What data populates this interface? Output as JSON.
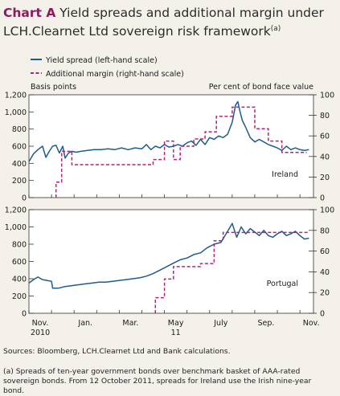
{
  "header": {
    "label": "Chart A",
    "title_line1": "Yield spreads and additional margin under",
    "title_line2": "LCH.Clearnet Ltd sovereign risk framework",
    "footnote_marker": "(a)"
  },
  "sources": "Sources:  Bloomberg, LCH.Clearnet Ltd and Bank calculations.",
  "footnote": "(a)  Spreads of ten-year government bonds over benchmark basket of AAA-rated sovereign bonds.  From 12 October 2011, spreads for Ireland use the Irish nine-year bond.",
  "colors": {
    "spread": "#1f5b8e",
    "margin": "#b3237d",
    "accent": "#8a1c5e"
  },
  "chart_data": {
    "type": "line",
    "legend": {
      "placement": "top-left",
      "entries": [
        "Yield spread (left-hand scale)",
        "Additional margin (right-hand scale)"
      ]
    },
    "left_axis_label": "Basis points",
    "right_axis_label": "Per cent of bond face value",
    "x_ticks": [
      "Nov.",
      "Jan.",
      "Mar.",
      "May",
      "July",
      "Sep.",
      "Nov."
    ],
    "x_ticks_second_row": [
      "2010",
      "",
      "",
      "11",
      "",
      "",
      ""
    ],
    "x_range_months": [
      0,
      12.6
    ],
    "left_ticks": [
      "1,200",
      "1,000",
      "800",
      "600",
      "400",
      "200",
      "0"
    ],
    "right_ticks": [
      "100",
      "80",
      "60",
      "40",
      "20",
      "0"
    ],
    "left_range": [
      0,
      1200
    ],
    "right_range": [
      0,
      100
    ],
    "panels": [
      {
        "name": "Ireland",
        "spread": [
          [
            0,
            420
          ],
          [
            0.2,
            510
          ],
          [
            0.4,
            560
          ],
          [
            0.6,
            600
          ],
          [
            0.75,
            470
          ],
          [
            0.9,
            540
          ],
          [
            1.05,
            600
          ],
          [
            1.2,
            610
          ],
          [
            1.35,
            520
          ],
          [
            1.5,
            600
          ],
          [
            1.6,
            460
          ],
          [
            1.75,
            520
          ],
          [
            1.9,
            540
          ],
          [
            2.1,
            530
          ],
          [
            2.3,
            540
          ],
          [
            2.6,
            550
          ],
          [
            2.9,
            560
          ],
          [
            3.2,
            560
          ],
          [
            3.5,
            570
          ],
          [
            3.8,
            560
          ],
          [
            4.1,
            580
          ],
          [
            4.4,
            560
          ],
          [
            4.7,
            580
          ],
          [
            5.0,
            570
          ],
          [
            5.2,
            620
          ],
          [
            5.4,
            560
          ],
          [
            5.6,
            600
          ],
          [
            5.8,
            580
          ],
          [
            6.0,
            620
          ],
          [
            6.2,
            590
          ],
          [
            6.4,
            600
          ],
          [
            6.6,
            620
          ],
          [
            6.8,
            600
          ],
          [
            7.0,
            640
          ],
          [
            7.2,
            660
          ],
          [
            7.4,
            610
          ],
          [
            7.6,
            680
          ],
          [
            7.8,
            620
          ],
          [
            8.0,
            700
          ],
          [
            8.2,
            680
          ],
          [
            8.4,
            720
          ],
          [
            8.6,
            700
          ],
          [
            8.8,
            740
          ],
          [
            9.0,
            880
          ],
          [
            9.15,
            1080
          ],
          [
            9.25,
            1120
          ],
          [
            9.35,
            1000
          ],
          [
            9.45,
            900
          ],
          [
            9.6,
            820
          ],
          [
            9.8,
            700
          ],
          [
            10.0,
            650
          ],
          [
            10.2,
            680
          ],
          [
            10.4,
            650
          ],
          [
            10.6,
            620
          ],
          [
            10.8,
            600
          ],
          [
            11.0,
            580
          ],
          [
            11.2,
            550
          ],
          [
            11.4,
            600
          ],
          [
            11.6,
            560
          ],
          [
            11.8,
            580
          ],
          [
            12.0,
            560
          ],
          [
            12.2,
            550
          ],
          [
            12.4,
            560
          ]
        ],
        "margin": [
          [
            1.2,
            0
          ],
          [
            1.2,
            15
          ],
          [
            1.45,
            15
          ],
          [
            1.45,
            45
          ],
          [
            1.9,
            45
          ],
          [
            1.9,
            32
          ],
          [
            5.5,
            32
          ],
          [
            5.5,
            37
          ],
          [
            6.0,
            37
          ],
          [
            6.0,
            55
          ],
          [
            6.4,
            55
          ],
          [
            6.4,
            37
          ],
          [
            6.7,
            37
          ],
          [
            6.7,
            50
          ],
          [
            7.3,
            50
          ],
          [
            7.3,
            57
          ],
          [
            7.8,
            57
          ],
          [
            7.8,
            64
          ],
          [
            8.3,
            64
          ],
          [
            8.3,
            79
          ],
          [
            9.0,
            79
          ],
          [
            9.0,
            88
          ],
          [
            10.0,
            88
          ],
          [
            10.0,
            67
          ],
          [
            10.6,
            67
          ],
          [
            10.6,
            55
          ],
          [
            11.2,
            55
          ],
          [
            11.2,
            44
          ],
          [
            12.3,
            44
          ]
        ]
      },
      {
        "name": "Portugal",
        "spread": [
          [
            0,
            350
          ],
          [
            0.2,
            390
          ],
          [
            0.4,
            420
          ],
          [
            0.6,
            390
          ],
          [
            0.8,
            380
          ],
          [
            1.0,
            370
          ],
          [
            1.05,
            290
          ],
          [
            1.3,
            290
          ],
          [
            1.6,
            310
          ],
          [
            1.9,
            320
          ],
          [
            2.2,
            330
          ],
          [
            2.5,
            340
          ],
          [
            2.8,
            350
          ],
          [
            3.1,
            360
          ],
          [
            3.4,
            360
          ],
          [
            3.7,
            370
          ],
          [
            4.0,
            380
          ],
          [
            4.3,
            390
          ],
          [
            4.6,
            400
          ],
          [
            4.9,
            410
          ],
          [
            5.2,
            430
          ],
          [
            5.5,
            460
          ],
          [
            5.8,
            500
          ],
          [
            6.1,
            540
          ],
          [
            6.4,
            580
          ],
          [
            6.7,
            620
          ],
          [
            7.0,
            640
          ],
          [
            7.3,
            680
          ],
          [
            7.6,
            700
          ],
          [
            7.9,
            760
          ],
          [
            8.2,
            800
          ],
          [
            8.5,
            820
          ],
          [
            8.8,
            950
          ],
          [
            9.0,
            1040
          ],
          [
            9.2,
            880
          ],
          [
            9.4,
            1000
          ],
          [
            9.6,
            920
          ],
          [
            9.8,
            980
          ],
          [
            10.0,
            940
          ],
          [
            10.2,
            900
          ],
          [
            10.4,
            960
          ],
          [
            10.6,
            900
          ],
          [
            10.8,
            880
          ],
          [
            11.0,
            920
          ],
          [
            11.2,
            950
          ],
          [
            11.4,
            900
          ],
          [
            11.6,
            920
          ],
          [
            11.8,
            950
          ],
          [
            12.0,
            900
          ],
          [
            12.2,
            860
          ],
          [
            12.4,
            870
          ]
        ],
        "margin": [
          [
            5.6,
            0
          ],
          [
            5.6,
            15
          ],
          [
            6.0,
            15
          ],
          [
            6.0,
            33
          ],
          [
            6.4,
            33
          ],
          [
            6.4,
            45
          ],
          [
            7.6,
            45
          ],
          [
            7.6,
            48
          ],
          [
            8.2,
            48
          ],
          [
            8.2,
            70
          ],
          [
            8.6,
            70
          ],
          [
            8.6,
            78
          ],
          [
            12.4,
            78
          ]
        ]
      }
    ]
  }
}
